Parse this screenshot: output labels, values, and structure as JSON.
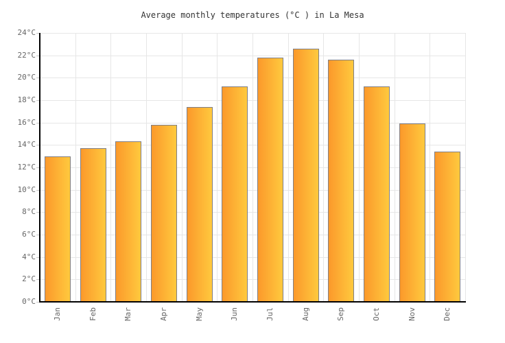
{
  "chart_data": {
    "type": "bar",
    "title": "Average monthly temperatures (°C ) in La Mesa",
    "categories": [
      "Jan",
      "Feb",
      "Mar",
      "Apr",
      "May",
      "Jun",
      "Jul",
      "Aug",
      "Sep",
      "Oct",
      "Nov",
      "Dec"
    ],
    "values": [
      13.0,
      13.7,
      14.3,
      15.8,
      17.4,
      19.2,
      21.8,
      22.6,
      21.6,
      19.2,
      15.9,
      13.4
    ],
    "unit": "°C",
    "xlabel": "",
    "ylabel": "",
    "ylim": [
      0,
      24
    ],
    "ytick_step": 2,
    "ytick_labels": [
      "0°C",
      "2°C",
      "4°C",
      "6°C",
      "8°C",
      "10°C",
      "12°C",
      "14°C",
      "16°C",
      "18°C",
      "20°C",
      "22°C",
      "24°C"
    ],
    "grid": true,
    "legend": false,
    "colors": {
      "bar_gradient_left": "#fb992b",
      "bar_gradient_right": "#ffc93e",
      "bar_border": "#7e7e86",
      "grid_line": "#e6e6e6",
      "axis_line": "#000000",
      "tick": "#c8c8c8",
      "label_text": "#666666",
      "title_text": "#333333",
      "background": "#ffffff"
    }
  }
}
